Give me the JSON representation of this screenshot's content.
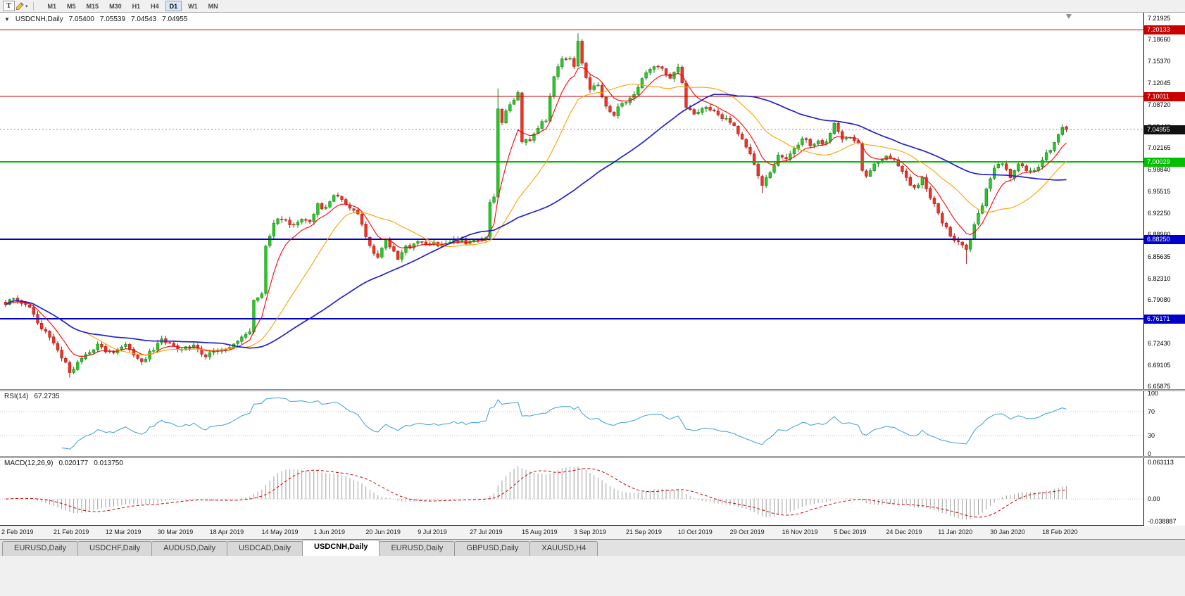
{
  "toolbar": {
    "text_tool_label": "T",
    "timeframes": [
      "M1",
      "M5",
      "M15",
      "M30",
      "H1",
      "H4",
      "D1",
      "W1",
      "MN"
    ],
    "active_timeframe": "D1"
  },
  "chart": {
    "header": {
      "symbol": "USDCNH,Daily",
      "open": "7.05400",
      "high": "7.05539",
      "low": "7.04543",
      "close": "7.04955"
    }
  },
  "rsi_panel": {
    "name": "RSI(14)",
    "value": "67.2735",
    "axis_ticks": [
      "100",
      "70",
      "30",
      "0"
    ]
  },
  "macd_panel": {
    "name": "MACD(12,26,9)",
    "main_value": "0.020177",
    "signal_value": "0.013750",
    "axis_ticks": [
      "0.063113",
      "0.00",
      "-0.038887"
    ]
  },
  "tabs": {
    "items": [
      "EURUSD,Daily",
      "USDCHF,Daily",
      "AUDUSD,Daily",
      "USDCAD,Daily",
      "USDCNH,Daily",
      "EURUSD,Daily",
      "GBPUSD,Daily",
      "XAUUSD,H4"
    ],
    "active_index": 4
  },
  "chart_data": {
    "type": "candlestick",
    "symbol": "USDCNH",
    "timeframe": "Daily",
    "title": "USDCNH,Daily",
    "bar_count": 266,
    "bars_per_label": 13,
    "seed": 20200221,
    "noise": 0.007,
    "scale": {
      "pmax": 7.2275,
      "pmin": 6.6545
    },
    "x_labels": [
      "2 Feb 2019",
      "21 Feb 2019",
      "12 Mar 2019",
      "30 Mar 2019",
      "18 Apr 2019",
      "14 May 2019",
      "1 Jun 2019",
      "20 Jun 2019",
      "9 Jul 2019",
      "27 Jul 2019",
      "15 Aug 2019",
      "3 Sep 2019",
      "21 Sep 2019",
      "10 Oct 2019",
      "29 Oct 2019",
      "16 Nov 2019",
      "5 Dec 2019",
      "24 Dec 2019",
      "11 Jan 2020",
      "30 Jan 2020",
      "18 Feb 2020"
    ],
    "price_axis_ticks": [
      "7.21925",
      "7.18660",
      "7.15370",
      "7.12045",
      "7.08720",
      "7.05440",
      "7.02165",
      "6.98840",
      "6.95515",
      "6.92250",
      "6.88960",
      "6.85635",
      "6.82310",
      "6.79080",
      "6.75755",
      "6.72430",
      "6.69105",
      "6.65875"
    ],
    "price_path": [
      [
        0,
        6.78
      ],
      [
        2,
        6.795
      ],
      [
        4,
        6.788
      ],
      [
        6,
        6.776
      ],
      [
        9,
        6.748
      ],
      [
        13,
        6.716
      ],
      [
        16,
        6.681
      ],
      [
        19,
        6.703
      ],
      [
        23,
        6.722
      ],
      [
        26,
        6.71
      ],
      [
        30,
        6.722
      ],
      [
        34,
        6.695
      ],
      [
        39,
        6.73
      ],
      [
        43,
        6.713
      ],
      [
        47,
        6.72
      ],
      [
        50,
        6.704
      ],
      [
        53,
        6.712
      ],
      [
        56,
        6.718
      ],
      [
        60,
        6.736
      ],
      [
        61,
        6.742
      ],
      [
        62,
        6.79
      ],
      [
        64,
        6.802
      ],
      [
        65,
        6.87
      ],
      [
        67,
        6.906
      ],
      [
        69,
        6.916
      ],
      [
        71,
        6.902
      ],
      [
        73,
        6.912
      ],
      [
        76,
        6.906
      ],
      [
        78,
        6.934
      ],
      [
        80,
        6.93
      ],
      [
        82,
        6.946
      ],
      [
        84,
        6.944
      ],
      [
        86,
        6.93
      ],
      [
        88,
        6.924
      ],
      [
        91,
        6.872
      ],
      [
        93,
        6.856
      ],
      [
        95,
        6.88
      ],
      [
        98,
        6.852
      ],
      [
        100,
        6.87
      ],
      [
        104,
        6.879
      ],
      [
        108,
        6.874
      ],
      [
        112,
        6.881
      ],
      [
        116,
        6.878
      ],
      [
        120,
        6.886
      ],
      [
        121,
        6.94
      ],
      [
        122,
        6.946
      ],
      [
        123,
        7.08
      ],
      [
        124,
        7.062
      ],
      [
        125,
        7.076
      ],
      [
        126,
        7.086
      ],
      [
        127,
        7.096
      ],
      [
        128,
        7.106
      ],
      [
        129,
        7.032
      ],
      [
        131,
        7.036
      ],
      [
        133,
        7.052
      ],
      [
        135,
        7.066
      ],
      [
        137,
        7.13
      ],
      [
        139,
        7.16
      ],
      [
        141,
        7.158
      ],
      [
        142,
        7.146
      ],
      [
        143,
        7.186
      ],
      [
        144,
        7.148
      ],
      [
        146,
        7.112
      ],
      [
        148,
        7.116
      ],
      [
        150,
        7.086
      ],
      [
        152,
        7.072
      ],
      [
        154,
        7.092
      ],
      [
        156,
        7.096
      ],
      [
        158,
        7.116
      ],
      [
        160,
        7.136
      ],
      [
        162,
        7.146
      ],
      [
        164,
        7.14
      ],
      [
        166,
        7.126
      ],
      [
        168,
        7.146
      ],
      [
        169,
        7.122
      ],
      [
        170,
        7.082
      ],
      [
        172,
        7.072
      ],
      [
        174,
        7.082
      ],
      [
        176,
        7.08
      ],
      [
        178,
        7.07
      ],
      [
        180,
        7.066
      ],
      [
        182,
        7.056
      ],
      [
        184,
        7.036
      ],
      [
        186,
        7.016
      ],
      [
        188,
        6.976
      ],
      [
        189,
        6.962
      ],
      [
        191,
        6.986
      ],
      [
        193,
        7.01
      ],
      [
        195,
        7.006
      ],
      [
        197,
        7.022
      ],
      [
        199,
        7.036
      ],
      [
        201,
        7.026
      ],
      [
        203,
        7.03
      ],
      [
        205,
        7.03
      ],
      [
        207,
        7.06
      ],
      [
        209,
        7.036
      ],
      [
        211,
        7.036
      ],
      [
        213,
        7.03
      ],
      [
        214,
        6.986
      ],
      [
        215,
        6.976
      ],
      [
        217,
        7.0
      ],
      [
        219,
        7.006
      ],
      [
        221,
        7.006
      ],
      [
        223,
        6.996
      ],
      [
        225,
        6.976
      ],
      [
        227,
        6.96
      ],
      [
        229,
        6.976
      ],
      [
        231,
        6.946
      ],
      [
        233,
        6.922
      ],
      [
        236,
        6.886
      ],
      [
        238,
        6.88
      ],
      [
        240,
        6.866
      ],
      [
        242,
        6.906
      ],
      [
        244,
        6.936
      ],
      [
        246,
        6.976
      ],
      [
        247,
        6.99
      ],
      [
        249,
        7.0
      ],
      [
        251,
        6.976
      ],
      [
        253,
        7.0
      ],
      [
        255,
        6.986
      ],
      [
        257,
        6.986
      ],
      [
        259,
        7.006
      ],
      [
        261,
        7.018
      ],
      [
        263,
        7.042
      ],
      [
        264,
        7.053
      ],
      [
        265,
        7.0496
      ]
    ],
    "wick_spikes": [
      {
        "i": 16,
        "low": 6.672
      },
      {
        "i": 123,
        "high": 7.112
      },
      {
        "i": 143,
        "high": 7.196
      },
      {
        "i": 189,
        "low": 6.953
      },
      {
        "i": 240,
        "low": 6.845
      }
    ],
    "last_bar": {
      "o": 7.054,
      "h": 7.05539,
      "l": 7.04543,
      "c": 7.04955
    },
    "current_price": {
      "value": 7.04955,
      "label": "7.04955",
      "color": "#111111"
    },
    "hlines": [
      {
        "value": 7.20133,
        "label": "7.20133",
        "color": "#C80000",
        "width": 1
      },
      {
        "value": 7.10011,
        "label": "7.10011",
        "color": "#C80000",
        "width": 1
      },
      {
        "value": 7.00029,
        "label": "7.00029",
        "color": "#00BE00",
        "width": 2
      },
      {
        "value": 6.8825,
        "label": "6.88250",
        "color": "#0000C8",
        "width": 2
      },
      {
        "value": 6.76171,
        "label": "6.76171",
        "color": "#0000C8",
        "width": 2
      }
    ],
    "moving_averages": [
      {
        "type": "ema",
        "period": 8,
        "color": "#FF0000",
        "width": 1.1
      },
      {
        "type": "sma",
        "period": 21,
        "color": "#FFA000",
        "width": 1.1
      },
      {
        "type": "sma",
        "period": 55,
        "color": "#2121CC",
        "width": 1.7
      }
    ],
    "candle_colors": {
      "up": "#26C826",
      "up_border": "#0E7A0E",
      "down": "#EE3322",
      "down_border": "#A31212"
    },
    "rsi": {
      "period": 14,
      "color": "#3B9DE0",
      "levels": [
        70,
        30
      ],
      "scale": {
        "vmax": 104,
        "vmin": -4
      }
    },
    "macd": {
      "fast": 12,
      "slow": 26,
      "signal": 9,
      "hist_color": "#9E9E9E",
      "signal_color": "#CC0000",
      "scale": {
        "vmax": 0.071,
        "vmin": -0.045
      }
    }
  }
}
